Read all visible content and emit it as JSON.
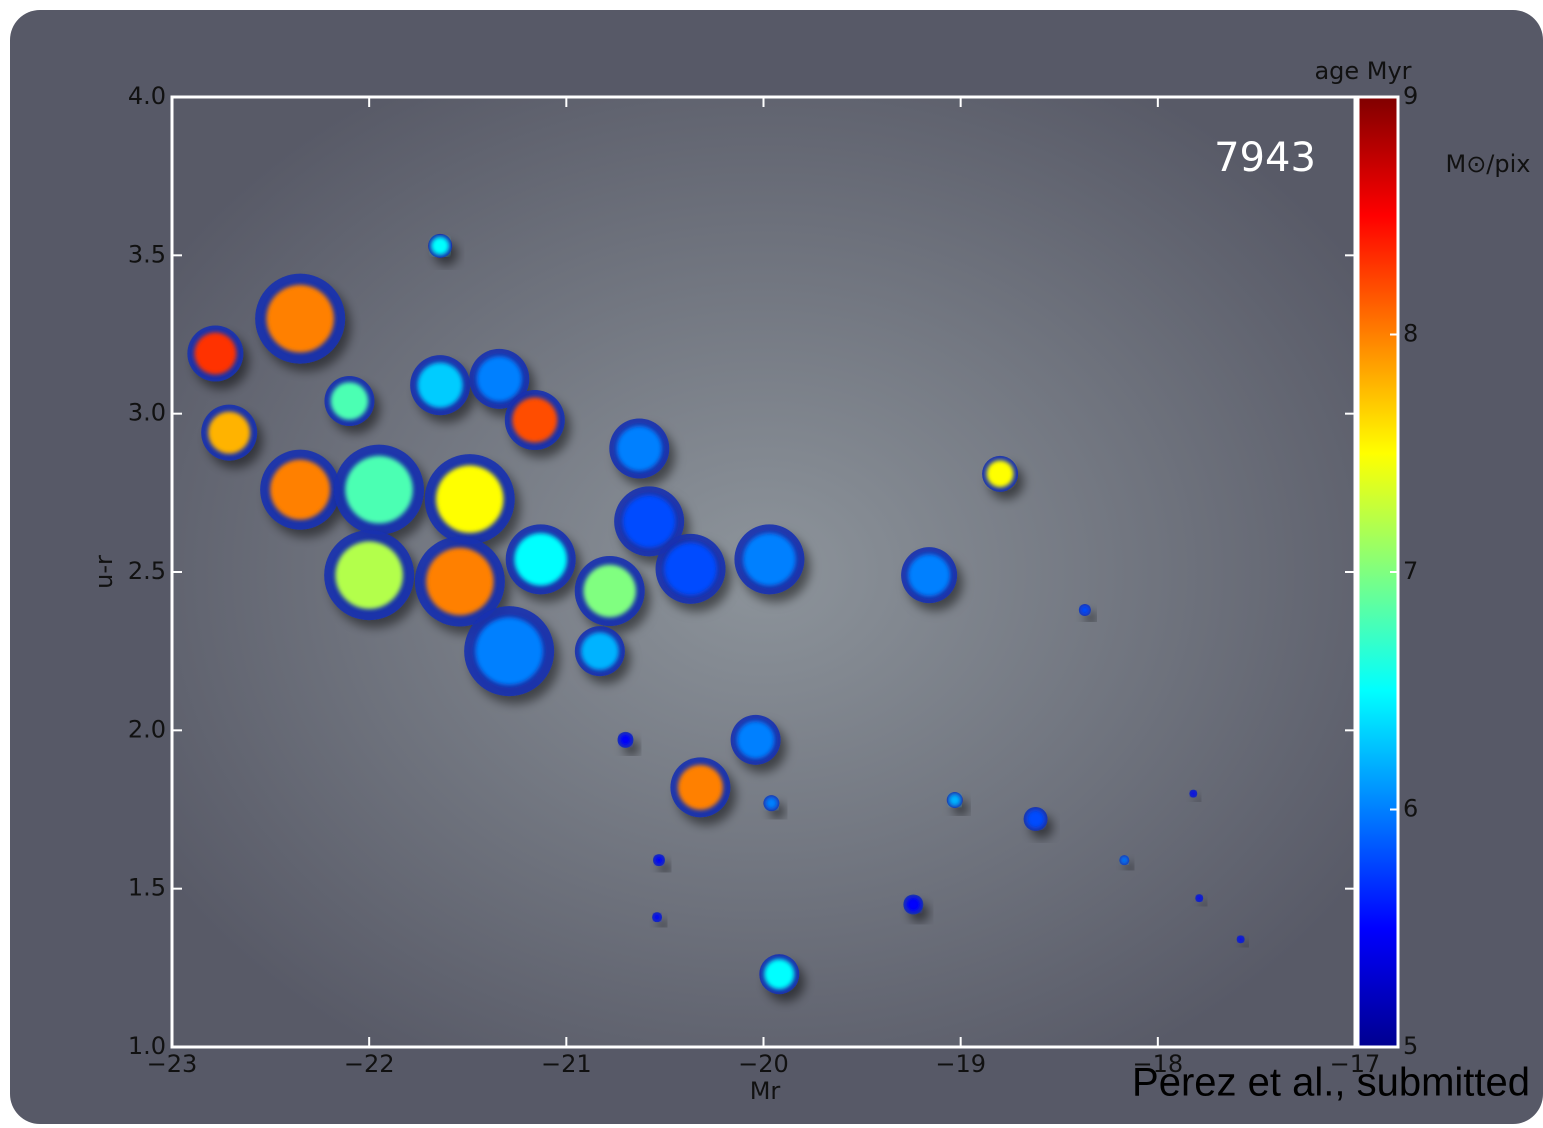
{
  "chart_data": {
    "type": "scatter",
    "colormap": "jet",
    "xlabel": "Mr",
    "ylabel": "u-r",
    "annotation": "7943",
    "credit": "Perez et al., submitted",
    "xlim": [
      -23,
      -17
    ],
    "ylim": [
      1,
      4
    ],
    "xticks": [
      {
        "value": -23,
        "label": "−23"
      },
      {
        "value": -22,
        "label": "−22"
      },
      {
        "value": -21,
        "label": "−21"
      },
      {
        "value": -20,
        "label": "−20"
      },
      {
        "value": -19,
        "label": "−19"
      },
      {
        "value": -18,
        "label": "−18"
      },
      {
        "value": -17,
        "label": "−17"
      }
    ],
    "yticks": [
      {
        "value": 1,
        "label": "1.0"
      },
      {
        "value": 1.5,
        "label": "1.5"
      },
      {
        "value": 2,
        "label": "2.0"
      },
      {
        "value": 2.5,
        "label": "2.5"
      },
      {
        "value": 3,
        "label": "3.0"
      },
      {
        "value": 3.5,
        "label": "3.5"
      },
      {
        "value": 4,
        "label": "4.0"
      }
    ],
    "colorbar": {
      "label": "age Myr",
      "secondary_label": "M⊙/pix",
      "lim": [
        5,
        9
      ],
      "ticks": [
        5,
        6,
        7,
        8,
        9
      ]
    },
    "x": [
      -22.78,
      -22.35,
      -22.71,
      -21.64,
      -22.1,
      -21.64,
      -21.34,
      -21.16,
      -22.35,
      -21.95,
      -21.49,
      -22.0,
      -21.54,
      -21.13,
      -21.29,
      -20.63,
      -20.58,
      -20.78,
      -20.37,
      -19.97,
      -20.83,
      -19.16,
      -18.8,
      -20.04,
      -20.32,
      -19.92,
      -20.7,
      -18.37,
      -19.03,
      -18.62,
      -19.24,
      -18.17,
      -17.79,
      -17.58,
      -17.82,
      -20.53,
      -20.54,
      -19.96
    ],
    "values": [
      3.19,
      3.3,
      2.94,
      3.53,
      3.04,
      3.09,
      3.11,
      2.98,
      2.76,
      2.76,
      2.73,
      2.49,
      2.47,
      2.54,
      2.25,
      2.89,
      2.66,
      2.44,
      2.51,
      2.54,
      2.25,
      2.49,
      2.81,
      1.97,
      1.82,
      1.23,
      1.97,
      2.38,
      1.78,
      1.72,
      1.45,
      1.59,
      1.47,
      1.34,
      1.8,
      1.59,
      1.41,
      1.77
    ],
    "color_values": [
      8.3,
      8.0,
      7.8,
      6.5,
      6.8,
      6.3,
      6.0,
      8.2,
      8.0,
      6.8,
      7.5,
      7.2,
      8.0,
      6.5,
      6.0,
      6.0,
      5.8,
      7.0,
      5.8,
      6.0,
      6.2,
      6.0,
      7.5,
      6.0,
      8.0,
      6.5,
      5.5,
      5.8,
      6.2,
      5.8,
      5.5,
      6.0,
      5.5,
      5.5,
      5.5,
      5.5,
      5.5,
      6.0
    ],
    "sizes": [
      28,
      45,
      28,
      12,
      25,
      30,
      30,
      30,
      40,
      45,
      45,
      45,
      45,
      35,
      45,
      30,
      35,
      35,
      35,
      35,
      25,
      28,
      18,
      25,
      30,
      20,
      8,
      6,
      8,
      12,
      10,
      5,
      4,
      4,
      4,
      6,
      5,
      8
    ]
  }
}
